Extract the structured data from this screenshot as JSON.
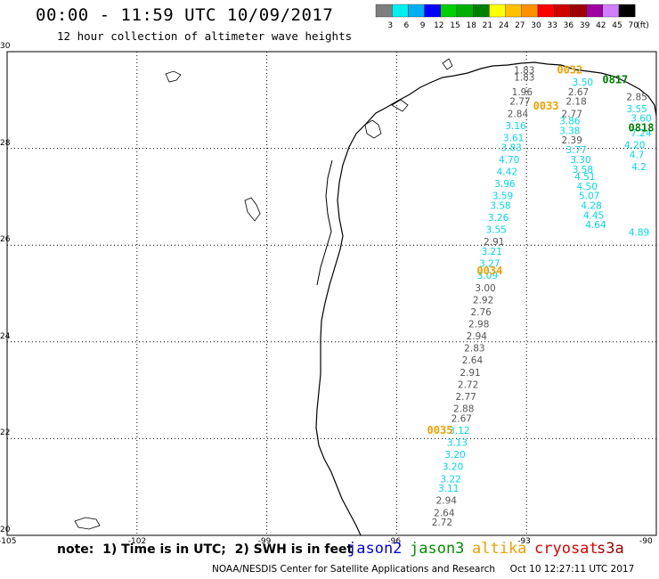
{
  "title": "00:00 - 11:59 UTC 10/09/2017",
  "subtitle": "12 hour collection of altimeter wave heights",
  "colorbar": {
    "unit": "(ft)",
    "labels": [
      "3",
      "6",
      "9",
      "12",
      "15",
      "18",
      "21",
      "24",
      "27",
      "30",
      "33",
      "36",
      "39",
      "42",
      "45",
      "70"
    ],
    "colors": [
      "#7f7f7f",
      "#00f0f0",
      "#00b0f0",
      "#0000ff",
      "#00d000",
      "#00b000",
      "#008000",
      "#ffff00",
      "#ffc000",
      "#ff9000",
      "#ff0000",
      "#d00000",
      "#a00000",
      "#a000a0",
      "#d080ff",
      "#000000"
    ]
  },
  "axes": {
    "x_ticks": [
      "-105",
      "-102",
      "-99",
      "-96",
      "-93",
      "-90"
    ],
    "y_ticks": [
      "30",
      "28",
      "26",
      "24",
      "22",
      "20"
    ],
    "lon_range": [
      -105,
      -90
    ],
    "lat_range": [
      20,
      30
    ]
  },
  "time_labels": [
    {
      "text": "0032",
      "lon": -92.0,
      "lat": 29.55,
      "color": "#f0a000"
    },
    {
      "text": "0033",
      "lon": -92.55,
      "lat": 28.8,
      "color": "#f0a000"
    },
    {
      "text": "0034",
      "lon": -93.85,
      "lat": 25.4,
      "color": "#f0a000"
    },
    {
      "text": "0035",
      "lon": -95.0,
      "lat": 22.1,
      "color": "#f0a000"
    },
    {
      "text": "0817",
      "lon": -90.95,
      "lat": 29.35,
      "color": "#008000"
    },
    {
      "text": "0818",
      "lon": -90.35,
      "lat": 28.35,
      "color": "#008000"
    }
  ],
  "track_a": [
    {
      "v": "1.83",
      "lon": -93.05,
      "lat": 29.55,
      "c": "#555555"
    },
    {
      "v": "1.83",
      "lon": -93.05,
      "lat": 29.4,
      "c": "#555555"
    },
    {
      "v": "1.96",
      "lon": -93.1,
      "lat": 29.1,
      "c": "#555555"
    },
    {
      "v": "2.77",
      "lon": -93.15,
      "lat": 28.9,
      "c": "#555555"
    },
    {
      "v": "2.84",
      "lon": -93.2,
      "lat": 28.65,
      "c": "#555555"
    },
    {
      "v": "3.16",
      "lon": -93.25,
      "lat": 28.4,
      "c": "#00d8e8"
    },
    {
      "v": "3.61",
      "lon": -93.3,
      "lat": 28.15,
      "c": "#00d8e8"
    },
    {
      "v": "3.83",
      "lon": -93.35,
      "lat": 27.95,
      "c": "#00d8e8"
    },
    {
      "v": "4.70",
      "lon": -93.4,
      "lat": 27.7,
      "c": "#00d8e8"
    },
    {
      "v": "4.42",
      "lon": -93.45,
      "lat": 27.45,
      "c": "#00d8e8"
    },
    {
      "v": "3.96",
      "lon": -93.5,
      "lat": 27.2,
      "c": "#00d8e8"
    },
    {
      "v": "3.59",
      "lon": -93.55,
      "lat": 26.95,
      "c": "#00d8e8"
    },
    {
      "v": "3.58",
      "lon": -93.6,
      "lat": 26.75,
      "c": "#00d8e8"
    },
    {
      "v": "3.26",
      "lon": -93.65,
      "lat": 26.5,
      "c": "#00d8e8"
    },
    {
      "v": "3.55",
      "lon": -93.7,
      "lat": 26.25,
      "c": "#00d8e8"
    },
    {
      "v": "2.91",
      "lon": -93.75,
      "lat": 26.0,
      "c": "#555555"
    },
    {
      "v": "3.21",
      "lon": -93.8,
      "lat": 25.8,
      "c": "#00d8e8"
    },
    {
      "v": "3.27",
      "lon": -93.85,
      "lat": 25.55,
      "c": "#00d8e8"
    },
    {
      "v": "3.09",
      "lon": -93.9,
      "lat": 25.3,
      "c": "#00d8e8"
    },
    {
      "v": "3.00",
      "lon": -93.95,
      "lat": 25.05,
      "c": "#555555"
    },
    {
      "v": "2.92",
      "lon": -94.0,
      "lat": 24.8,
      "c": "#555555"
    },
    {
      "v": "2.76",
      "lon": -94.05,
      "lat": 24.55,
      "c": "#555555"
    },
    {
      "v": "2.98",
      "lon": -94.1,
      "lat": 24.3,
      "c": "#555555"
    },
    {
      "v": "2.94",
      "lon": -94.15,
      "lat": 24.05,
      "c": "#555555"
    },
    {
      "v": "2.83",
      "lon": -94.2,
      "lat": 23.8,
      "c": "#555555"
    },
    {
      "v": "2.64",
      "lon": -94.25,
      "lat": 23.55,
      "c": "#555555"
    },
    {
      "v": "2.91",
      "lon": -94.3,
      "lat": 23.3,
      "c": "#555555"
    },
    {
      "v": "2.72",
      "lon": -94.35,
      "lat": 23.05,
      "c": "#555555"
    },
    {
      "v": "2.77",
      "lon": -94.4,
      "lat": 22.8,
      "c": "#555555"
    },
    {
      "v": "2.88",
      "lon": -94.45,
      "lat": 22.55,
      "c": "#555555"
    },
    {
      "v": "2.67",
      "lon": -94.5,
      "lat": 22.35,
      "c": "#555555"
    },
    {
      "v": "3.12",
      "lon": -94.55,
      "lat": 22.1,
      "c": "#00d8e8"
    },
    {
      "v": "3.13",
      "lon": -94.6,
      "lat": 21.85,
      "c": "#00d8e8"
    },
    {
      "v": "3.20",
      "lon": -94.65,
      "lat": 21.6,
      "c": "#00d8e8"
    },
    {
      "v": "3.20",
      "lon": -94.7,
      "lat": 21.35,
      "c": "#00d8e8"
    },
    {
      "v": "3.22",
      "lon": -94.75,
      "lat": 21.1,
      "c": "#00d8e8"
    },
    {
      "v": "3.11",
      "lon": -94.8,
      "lat": 20.9,
      "c": "#00d8e8"
    },
    {
      "v": "2.94",
      "lon": -94.85,
      "lat": 20.65,
      "c": "#555555"
    },
    {
      "v": "2.64",
      "lon": -94.9,
      "lat": 20.4,
      "c": "#555555"
    },
    {
      "v": "2.72",
      "lon": -94.95,
      "lat": 20.2,
      "c": "#555555"
    }
  ],
  "track_b": [
    {
      "v": "3.50",
      "lon": -91.7,
      "lat": 29.3,
      "c": "#00d8e8"
    },
    {
      "v": "2.67",
      "lon": -91.8,
      "lat": 29.1,
      "c": "#555555"
    },
    {
      "v": "2.18",
      "lon": -91.85,
      "lat": 28.9,
      "c": "#555555"
    },
    {
      "v": "2.77",
      "lon": -91.95,
      "lat": 28.65,
      "c": "#555555"
    },
    {
      "v": "3.86",
      "lon": -92.0,
      "lat": 28.5,
      "c": "#00d8e8"
    },
    {
      "v": "3.38",
      "lon": -92.0,
      "lat": 28.3,
      "c": "#00d8e8"
    },
    {
      "v": "2.39",
      "lon": -91.95,
      "lat": 28.1,
      "c": "#555555"
    },
    {
      "v": "3.77",
      "lon": -91.85,
      "lat": 27.9,
      "c": "#00d8e8"
    },
    {
      "v": "3.30",
      "lon": -91.75,
      "lat": 27.7,
      "c": "#00d8e8"
    },
    {
      "v": "3.58",
      "lon": -91.7,
      "lat": 27.5,
      "c": "#00d8e8"
    },
    {
      "v": "4.51",
      "lon": -91.65,
      "lat": 27.35,
      "c": "#00d8e8"
    },
    {
      "v": "4.50",
      "lon": -91.6,
      "lat": 27.15,
      "c": "#00d8e8"
    },
    {
      "v": "5.07",
      "lon": -91.55,
      "lat": 26.95,
      "c": "#00d8e8"
    },
    {
      "v": "4.28",
      "lon": -91.5,
      "lat": 26.75,
      "c": "#00d8e8"
    },
    {
      "v": "4.45",
      "lon": -91.45,
      "lat": 26.55,
      "c": "#00d8e8"
    },
    {
      "v": "4.64",
      "lon": -91.4,
      "lat": 26.35,
      "c": "#00d8e8"
    }
  ],
  "track_c": [
    {
      "v": "2.85",
      "lon": -90.45,
      "lat": 29.0,
      "c": "#555555"
    },
    {
      "v": "3.55",
      "lon": -90.45,
      "lat": 28.75,
      "c": "#00d8e8"
    },
    {
      "v": "3.60",
      "lon": -90.35,
      "lat": 28.55,
      "c": "#00d8e8"
    },
    {
      "v": "7.24",
      "lon": -90.35,
      "lat": 28.25,
      "c": "#00d8e8"
    },
    {
      "v": "4.20",
      "lon": -90.5,
      "lat": 28.0,
      "c": "#00d8e8"
    },
    {
      "v": "4.7",
      "lon": -90.45,
      "lat": 27.8,
      "c": "#00d8e8"
    },
    {
      "v": "4.2",
      "lon": -90.4,
      "lat": 27.55,
      "c": "#00d8e8"
    },
    {
      "v": "4.89",
      "lon": -90.4,
      "lat": 26.2,
      "c": "#00d8e8"
    }
  ],
  "note": "note:  1) Time is in UTC;  2) SWH is in feet",
  "satellites": [
    {
      "name": "jason2",
      "color": "#0000ee"
    },
    {
      "name": "jason3",
      "color": "#009000"
    },
    {
      "name": "altika",
      "color": "#f0a000"
    },
    {
      "name": "cryosat",
      "color": "#e00000"
    },
    {
      "name": "s3a",
      "color": "#a00000"
    }
  ],
  "credit": "NOAA/NESDIS Center for Satellite Applications and Research     Oct 10 12:27:11 UTC 2017"
}
